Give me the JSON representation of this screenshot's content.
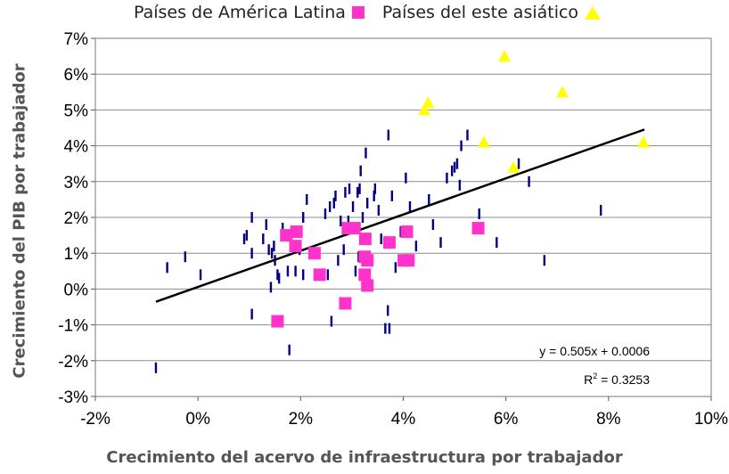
{
  "chart_data": {
    "type": "scatter",
    "title": "",
    "xlabel": "Crecimiento del acervo de infraestructura por trabajador",
    "ylabel": "Crecimiento del PIB por trabajador",
    "xlim": [
      -0.02,
      0.1
    ],
    "ylim": [
      -0.03,
      0.07
    ],
    "x_ticks": [
      -0.02,
      0.0,
      0.02,
      0.04,
      0.06,
      0.08,
      0.1
    ],
    "x_tick_labels": [
      "-2%",
      "0%",
      "2%",
      "4%",
      "6%",
      "8%",
      "10%"
    ],
    "y_ticks": [
      -0.03,
      -0.02,
      -0.01,
      0.0,
      0.01,
      0.02,
      0.03,
      0.04,
      0.05,
      0.06,
      0.07
    ],
    "y_tick_labels": [
      "-3%",
      "-2%",
      "-1%",
      "0%",
      "1%",
      "2%",
      "3%",
      "4%",
      "5%",
      "6%",
      "7%"
    ],
    "grid": "horizontal",
    "legend_position": "top",
    "colors": {
      "latin_america": "#ff33cc",
      "east_asia": "#ffff00",
      "other": "#000080",
      "trend": "#000000"
    },
    "series": [
      {
        "name": "Países de América Latina",
        "marker": "square",
        "points": [
          [
            0.0155,
            -0.009
          ],
          [
            0.0172,
            0.015
          ],
          [
            0.019,
            0.012
          ],
          [
            0.0192,
            0.016
          ],
          [
            0.0227,
            0.01
          ],
          [
            0.0237,
            0.004
          ],
          [
            0.0287,
            -0.004
          ],
          [
            0.0292,
            0.017
          ],
          [
            0.0305,
            0.017
          ],
          [
            0.0326,
            0.014
          ],
          [
            0.0325,
            0.009
          ],
          [
            0.0325,
            0.004
          ],
          [
            0.033,
            0.001
          ],
          [
            0.033,
            0.008
          ],
          [
            0.0373,
            0.013
          ],
          [
            0.0401,
            0.008
          ],
          [
            0.0407,
            0.016
          ],
          [
            0.041,
            0.008
          ],
          [
            0.0546,
            0.017
          ]
        ]
      },
      {
        "name": "Países del este asiático",
        "marker": "triangle",
        "points": [
          [
            0.0441,
            0.05
          ],
          [
            0.0448,
            0.052
          ],
          [
            0.0557,
            0.041
          ],
          [
            0.0597,
            0.065
          ],
          [
            0.0615,
            0.034
          ],
          [
            0.071,
            0.055
          ],
          [
            0.0868,
            0.041
          ]
        ]
      },
      {
        "name": "",
        "marker": "dash",
        "points": [
          [
            -0.0082,
            -0.022
          ],
          [
            -0.006,
            0.006
          ],
          [
            -0.0025,
            0.009
          ],
          [
            0.0005,
            0.004
          ],
          [
            0.009,
            0.014
          ],
          [
            0.0095,
            0.015
          ],
          [
            0.0105,
            0.02
          ],
          [
            0.0105,
            0.01
          ],
          [
            0.0105,
            -0.007
          ],
          [
            0.0127,
            0.014
          ],
          [
            0.0133,
            0.018
          ],
          [
            0.0138,
            0.011
          ],
          [
            0.0142,
            0.0005
          ],
          [
            0.0144,
            0.01
          ],
          [
            0.0148,
            0.012
          ],
          [
            0.015,
            0.008
          ],
          [
            0.0155,
            0.004
          ],
          [
            0.0158,
            0.003
          ],
          [
            0.0165,
            0.017
          ],
          [
            0.0175,
            0.005
          ],
          [
            0.0178,
            -0.017
          ],
          [
            0.019,
            0.005
          ],
          [
            0.0198,
            0.011
          ],
          [
            0.0205,
            0.02
          ],
          [
            0.0205,
            0.004
          ],
          [
            0.0212,
            0.025
          ],
          [
            0.0248,
            0.021
          ],
          [
            0.0253,
            0.004
          ],
          [
            0.0257,
            0.023
          ],
          [
            0.026,
            -0.009
          ],
          [
            0.0265,
            0.024
          ],
          [
            0.0268,
            0.026
          ],
          [
            0.0273,
            0.008
          ],
          [
            0.0278,
            0.019
          ],
          [
            0.0284,
            0.011
          ],
          [
            0.0287,
            0.027
          ],
          [
            0.0293,
            0.019
          ],
          [
            0.0295,
            0.028
          ],
          [
            0.0302,
            0.023
          ],
          [
            0.0307,
            0.005
          ],
          [
            0.0311,
            0.027
          ],
          [
            0.0313,
            0.009
          ],
          [
            0.0315,
            0.028
          ],
          [
            0.0317,
            0.033
          ],
          [
            0.0321,
            0.02
          ],
          [
            0.0327,
            0.038
          ],
          [
            0.033,
            0.024
          ],
          [
            0.0343,
            0.026
          ],
          [
            0.0345,
            0.028
          ],
          [
            0.0352,
            0.022
          ],
          [
            0.0357,
            0.014
          ],
          [
            0.0365,
            -0.011
          ],
          [
            0.037,
            -0.006
          ],
          [
            0.0371,
            0.043
          ],
          [
            0.0373,
            -0.011
          ],
          [
            0.0378,
            0.026
          ],
          [
            0.0385,
            0.006
          ],
          [
            0.0395,
            0.016
          ],
          [
            0.0405,
            0.031
          ],
          [
            0.0413,
            0.023
          ],
          [
            0.0425,
            0.012
          ],
          [
            0.045,
            0.025
          ],
          [
            0.0458,
            0.018
          ],
          [
            0.0473,
            0.013
          ],
          [
            0.0485,
            0.031
          ],
          [
            0.0495,
            0.033
          ],
          [
            0.05,
            0.034
          ],
          [
            0.0505,
            0.035
          ],
          [
            0.051,
            0.029
          ],
          [
            0.0513,
            0.04
          ],
          [
            0.0525,
            0.043
          ],
          [
            0.0548,
            0.021
          ],
          [
            0.0582,
            0.013
          ],
          [
            0.0625,
            0.035
          ],
          [
            0.0645,
            0.03
          ],
          [
            0.0675,
            0.008
          ],
          [
            0.0785,
            0.022
          ]
        ]
      }
    ],
    "trendline": {
      "slope": 0.505,
      "intercept": 0.0006,
      "x_range": [
        -0.0082,
        0.087
      ]
    },
    "annotations": [
      "y = 0.505x + 0.0006",
      "R² = 0.3253"
    ]
  },
  "legend": {
    "latin_america": "Países de América Latina",
    "east_asia": "Países del este asiático"
  },
  "equation": {
    "line1": "y = 0.505x + 0.0006",
    "r2_prefix": "R",
    "r2_sup": "2",
    "r2_value": " = 0.3253"
  }
}
